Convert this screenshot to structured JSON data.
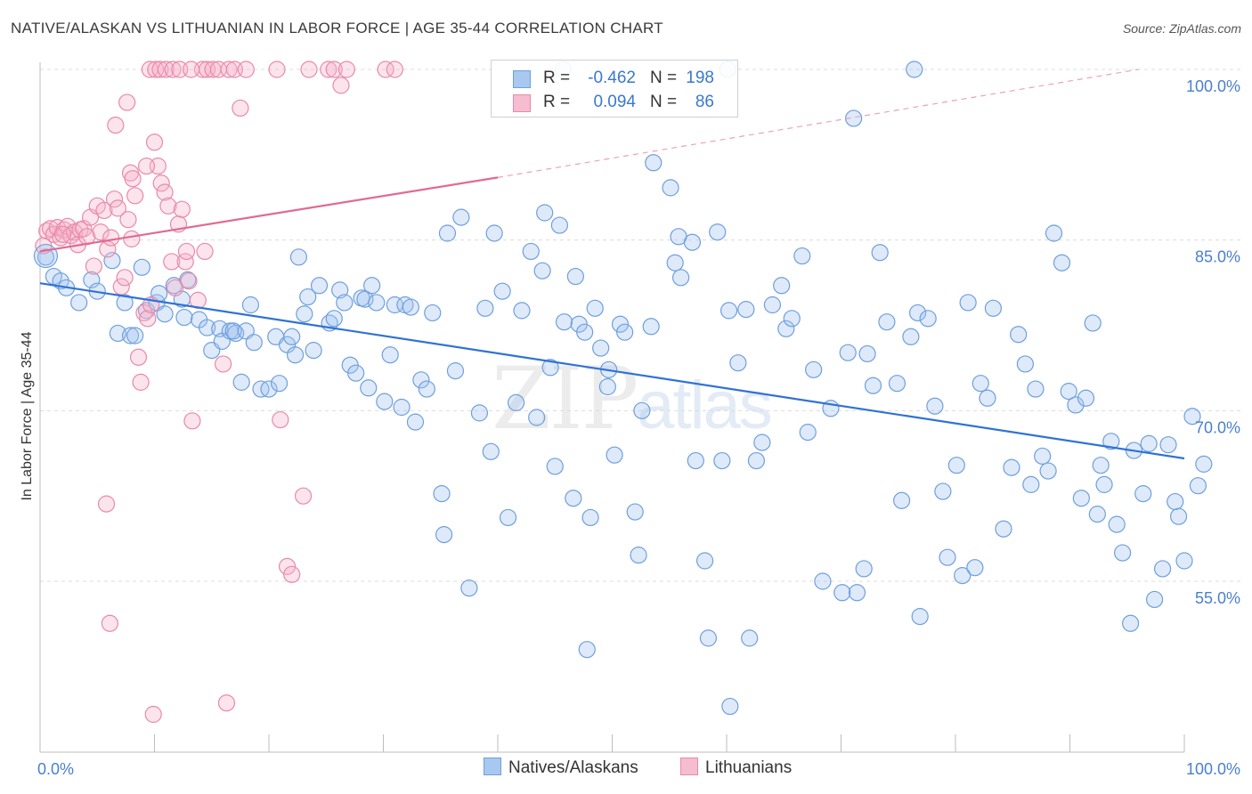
{
  "title": "NATIVE/ALASKAN VS LITHUANIAN IN LABOR FORCE | AGE 35-44 CORRELATION CHART",
  "source": "Source: ZipAtlas.com",
  "watermark": {
    "zip": "ZIP",
    "atlas": "atlas"
  },
  "legend": {
    "rows": [
      {
        "r_label": "R =",
        "r_value": "-0.462",
        "n_label": "N =",
        "n_value": "198",
        "color": "#a8c8f0",
        "border": "#6f9fdc"
      },
      {
        "r_label": "R =",
        "r_value": "0.094",
        "n_label": "N =",
        "n_value": "86",
        "color": "#f6bcd0",
        "border": "#e88aa8"
      }
    ]
  },
  "bottom_legend": [
    {
      "label": "Natives/Alaskans",
      "color": "#a8c8f0",
      "border": "#6f9fdc"
    },
    {
      "label": "Lithuanians",
      "color": "#f6bcd0",
      "border": "#e88aa8"
    }
  ],
  "chart_data": {
    "type": "scatter",
    "xlabel": "",
    "ylabel": "In Labor Force | Age 35-44",
    "xlim": [
      0,
      100
    ],
    "ylim": [
      40,
      102
    ],
    "y_ticks": [
      {
        "value": 100,
        "label": "100.0%"
      },
      {
        "value": 85,
        "label": "85.0%"
      },
      {
        "value": 70,
        "label": "70.0%"
      },
      {
        "value": 55,
        "label": "55.0%"
      }
    ],
    "x_tick_labels": [
      {
        "value": 0,
        "label": "0.0%"
      },
      {
        "value": 100,
        "label": "100.0%"
      }
    ],
    "x_minor_ticks": [
      10,
      20,
      30,
      40,
      50,
      60,
      70,
      80,
      90,
      100
    ],
    "grid": true,
    "legend_position": "top-center",
    "series": [
      {
        "name": "Natives/Alaskans",
        "color": "#6f9fdc",
        "trend": {
          "x0": 0,
          "y0": 81.2,
          "x1": 100,
          "y1": 65.8,
          "style": "solid"
        },
        "points": [
          [
            0.5,
            83.5
          ],
          [
            1.2,
            81.8
          ],
          [
            1.8,
            81.4
          ],
          [
            2.3,
            80.8
          ],
          [
            3.4,
            79.5
          ],
          [
            4.5,
            81.5
          ],
          [
            5.0,
            80.5
          ],
          [
            6.3,
            83.2
          ],
          [
            6.8,
            76.8
          ],
          [
            7.4,
            79.5
          ],
          [
            7.9,
            76.6
          ],
          [
            8.3,
            76.6
          ],
          [
            8.9,
            82.6
          ],
          [
            9.3,
            78.8
          ],
          [
            10.2,
            79.5
          ],
          [
            10.4,
            80.3
          ],
          [
            10.9,
            78.5
          ],
          [
            11.7,
            81.0
          ],
          [
            12.4,
            79.8
          ],
          [
            12.6,
            78.2
          ],
          [
            12.9,
            81.5
          ],
          [
            13.9,
            78.0
          ],
          [
            14.6,
            77.3
          ],
          [
            15.0,
            75.3
          ],
          [
            15.7,
            77.2
          ],
          [
            15.9,
            76.1
          ],
          [
            16.6,
            77.0
          ],
          [
            17.1,
            76.8
          ],
          [
            16.9,
            77.0
          ],
          [
            17.6,
            72.5
          ],
          [
            18.0,
            77.0
          ],
          [
            18.4,
            79.3
          ],
          [
            18.7,
            76.0
          ],
          [
            19.3,
            71.9
          ],
          [
            20.0,
            71.9
          ],
          [
            20.6,
            76.5
          ],
          [
            20.9,
            72.4
          ],
          [
            21.6,
            75.8
          ],
          [
            22.0,
            76.5
          ],
          [
            22.3,
            74.9
          ],
          [
            22.6,
            83.5
          ],
          [
            23.1,
            78.5
          ],
          [
            23.4,
            80.0
          ],
          [
            23.9,
            75.3
          ],
          [
            24.4,
            81.0
          ],
          [
            25.3,
            77.7
          ],
          [
            25.7,
            78.1
          ],
          [
            26.2,
            80.6
          ],
          [
            26.6,
            79.5
          ],
          [
            27.1,
            74.0
          ],
          [
            27.6,
            73.3
          ],
          [
            28.1,
            79.9
          ],
          [
            28.4,
            79.8
          ],
          [
            28.7,
            72.0
          ],
          [
            29.0,
            81.0
          ],
          [
            29.4,
            79.5
          ],
          [
            30.1,
            70.8
          ],
          [
            30.6,
            74.9
          ],
          [
            31.0,
            79.3
          ],
          [
            31.6,
            70.3
          ],
          [
            31.9,
            79.3
          ],
          [
            32.4,
            79.1
          ],
          [
            32.8,
            69.0
          ],
          [
            33.3,
            72.7
          ],
          [
            33.8,
            71.9
          ],
          [
            34.3,
            78.6
          ],
          [
            35.1,
            62.7
          ],
          [
            35.3,
            59.1
          ],
          [
            35.6,
            85.6
          ],
          [
            36.3,
            73.5
          ],
          [
            36.8,
            87.0
          ],
          [
            37.5,
            54.4
          ],
          [
            38.4,
            69.8
          ],
          [
            38.9,
            79.0
          ],
          [
            39.4,
            66.4
          ],
          [
            39.7,
            85.6
          ],
          [
            40.4,
            80.5
          ],
          [
            40.9,
            60.6
          ],
          [
            41.6,
            70.7
          ],
          [
            42.1,
            78.8
          ],
          [
            42.9,
            84.0
          ],
          [
            43.4,
            69.4
          ],
          [
            43.9,
            82.3
          ],
          [
            44.1,
            87.4
          ],
          [
            44.6,
            73.8
          ],
          [
            45.0,
            65.1
          ],
          [
            45.4,
            86.3
          ],
          [
            45.8,
            77.8
          ],
          [
            46.6,
            62.3
          ],
          [
            46.8,
            81.8
          ],
          [
            47.1,
            77.6
          ],
          [
            47.6,
            76.9
          ],
          [
            48.1,
            60.6
          ],
          [
            48.5,
            79.0
          ],
          [
            49.0,
            75.5
          ],
          [
            49.6,
            72.1
          ],
          [
            49.7,
            73.6
          ],
          [
            50.2,
            66.1
          ],
          [
            50.7,
            77.6
          ],
          [
            51.1,
            76.9
          ],
          [
            52.0,
            61.1
          ],
          [
            52.3,
            57.3
          ],
          [
            52.6,
            70.0
          ],
          [
            53.4,
            77.4
          ],
          [
            53.6,
            91.8
          ],
          [
            55.1,
            89.6
          ],
          [
            55.5,
            83.0
          ],
          [
            55.8,
            85.3
          ],
          [
            56.0,
            81.7
          ],
          [
            57.0,
            84.8
          ],
          [
            57.3,
            65.6
          ],
          [
            58.1,
            56.8
          ],
          [
            58.4,
            50.0
          ],
          [
            59.2,
            85.7
          ],
          [
            59.6,
            65.6
          ],
          [
            60.2,
            78.8
          ],
          [
            61.0,
            74.2
          ],
          [
            61.7,
            78.9
          ],
          [
            62.0,
            50.0
          ],
          [
            62.6,
            65.6
          ],
          [
            63.1,
            67.2
          ],
          [
            64.0,
            79.3
          ],
          [
            64.8,
            81.0
          ],
          [
            65.2,
            77.2
          ],
          [
            65.7,
            78.1
          ],
          [
            66.6,
            83.6
          ],
          [
            67.1,
            68.1
          ],
          [
            67.6,
            73.6
          ],
          [
            68.4,
            55.0
          ],
          [
            69.1,
            70.2
          ],
          [
            70.1,
            54.0
          ],
          [
            70.6,
            75.1
          ],
          [
            71.1,
            95.7
          ],
          [
            71.4,
            54.0
          ],
          [
            72.0,
            56.1
          ],
          [
            72.3,
            75.0
          ],
          [
            72.8,
            72.2
          ],
          [
            73.4,
            83.9
          ],
          [
            74.0,
            77.8
          ],
          [
            74.9,
            72.4
          ],
          [
            75.3,
            62.1
          ],
          [
            76.1,
            76.5
          ],
          [
            76.7,
            78.6
          ],
          [
            76.9,
            51.9
          ],
          [
            77.6,
            78.1
          ],
          [
            78.2,
            70.4
          ],
          [
            78.9,
            62.9
          ],
          [
            79.3,
            57.1
          ],
          [
            80.1,
            65.2
          ],
          [
            80.6,
            55.5
          ],
          [
            81.1,
            79.5
          ],
          [
            81.7,
            56.2
          ],
          [
            82.2,
            72.4
          ],
          [
            82.8,
            71.1
          ],
          [
            83.3,
            79.0
          ],
          [
            84.2,
            59.6
          ],
          [
            84.9,
            65.0
          ],
          [
            85.5,
            76.7
          ],
          [
            86.1,
            74.1
          ],
          [
            86.6,
            63.5
          ],
          [
            87.0,
            71.9
          ],
          [
            87.6,
            66.0
          ],
          [
            88.1,
            64.7
          ],
          [
            88.6,
            85.6
          ],
          [
            89.3,
            83.0
          ],
          [
            89.9,
            71.7
          ],
          [
            90.5,
            70.5
          ],
          [
            91.0,
            62.3
          ],
          [
            91.4,
            71.1
          ],
          [
            92.0,
            77.7
          ],
          [
            92.4,
            60.9
          ],
          [
            92.7,
            65.2
          ],
          [
            93.0,
            63.5
          ],
          [
            93.6,
            67.3
          ],
          [
            94.1,
            60.0
          ],
          [
            94.6,
            57.5
          ],
          [
            95.3,
            51.3
          ],
          [
            95.6,
            66.5
          ],
          [
            96.4,
            62.7
          ],
          [
            96.9,
            67.1
          ],
          [
            97.4,
            53.4
          ],
          [
            98.1,
            56.1
          ],
          [
            98.6,
            67.0
          ],
          [
            99.2,
            62.0
          ],
          [
            99.5,
            60.7
          ],
          [
            100.0,
            56.8
          ],
          [
            100.7,
            69.5
          ],
          [
            101.2,
            63.4
          ],
          [
            101.7,
            65.3
          ],
          [
            60.1,
            100.0
          ],
          [
            45.7,
            100.0
          ],
          [
            76.4,
            100.0
          ],
          [
            47.8,
            49.0
          ],
          [
            60.3,
            44.0
          ]
        ]
      },
      {
        "name": "Lithuanians",
        "color": "#e88aa8",
        "trend": {
          "x0": 0,
          "y0": 84.0,
          "x1": 40.0,
          "y1": 90.5,
          "x2": 96.0,
          "y2": 100.0,
          "style": "solid-then-dashed"
        },
        "points": [
          [
            0.3,
            84.5
          ],
          [
            0.6,
            85.8
          ],
          [
            0.9,
            86.0
          ],
          [
            1.2,
            85.5
          ],
          [
            1.5,
            86.1
          ],
          [
            1.8,
            85.2
          ],
          [
            2.1,
            85.9
          ],
          [
            2.4,
            86.2
          ],
          [
            2.7,
            85.4
          ],
          [
            3.0,
            85.7
          ],
          [
            3.3,
            84.6
          ],
          [
            3.5,
            85.9
          ],
          [
            3.8,
            86.0
          ],
          [
            4.1,
            85.3
          ],
          [
            4.4,
            87.0
          ],
          [
            4.7,
            82.7
          ],
          [
            5.0,
            88.0
          ],
          [
            5.3,
            85.7
          ],
          [
            5.6,
            87.6
          ],
          [
            5.9,
            84.2
          ],
          [
            6.2,
            85.2
          ],
          [
            6.5,
            88.6
          ],
          [
            6.8,
            87.8
          ],
          [
            7.1,
            80.9
          ],
          [
            7.4,
            81.7
          ],
          [
            7.7,
            86.8
          ],
          [
            8.0,
            85.1
          ],
          [
            8.3,
            88.9
          ],
          [
            8.6,
            74.7
          ],
          [
            8.8,
            72.5
          ],
          [
            9.1,
            78.6
          ],
          [
            9.4,
            78.1
          ],
          [
            9.7,
            79.3
          ],
          [
            10.0,
            93.6
          ],
          [
            10.3,
            91.5
          ],
          [
            10.6,
            90.0
          ],
          [
            10.9,
            89.2
          ],
          [
            11.2,
            88.0
          ],
          [
            11.5,
            83.1
          ],
          [
            11.8,
            80.8
          ],
          [
            12.1,
            86.4
          ],
          [
            12.4,
            87.7
          ],
          [
            12.7,
            83.1
          ],
          [
            13.0,
            81.4
          ],
          [
            13.3,
            69.1
          ],
          [
            13.8,
            79.7
          ],
          [
            14.2,
            100.0
          ],
          [
            14.6,
            100.0
          ],
          [
            15.1,
            100.0
          ],
          [
            15.6,
            100.0
          ],
          [
            16.0,
            74.1
          ],
          [
            16.5,
            100.0
          ],
          [
            17.0,
            100.0
          ],
          [
            17.5,
            96.6
          ],
          [
            18.0,
            100.0
          ],
          [
            9.6,
            100.0
          ],
          [
            10.1,
            100.0
          ],
          [
            10.5,
            100.0
          ],
          [
            11.0,
            100.0
          ],
          [
            11.6,
            100.0
          ],
          [
            12.2,
            100.0
          ],
          [
            13.2,
            100.0
          ],
          [
            20.7,
            100.0
          ],
          [
            21.0,
            69.2
          ],
          [
            21.6,
            56.3
          ],
          [
            22.0,
            55.6
          ],
          [
            23.0,
            62.5
          ],
          [
            23.5,
            100.0
          ],
          [
            25.2,
            100.0
          ],
          [
            25.7,
            100.0
          ],
          [
            26.3,
            98.6
          ],
          [
            26.8,
            100.0
          ],
          [
            30.2,
            100.0
          ],
          [
            31.0,
            100.0
          ],
          [
            5.8,
            61.8
          ],
          [
            6.1,
            51.3
          ],
          [
            6.6,
            95.1
          ],
          [
            7.6,
            97.1
          ],
          [
            7.9,
            90.9
          ],
          [
            8.1,
            90.4
          ],
          [
            9.3,
            91.5
          ],
          [
            12.8,
            84.0
          ],
          [
            14.4,
            84.0
          ],
          [
            16.3,
            44.3
          ],
          [
            9.9,
            43.3
          ],
          [
            2.0,
            85.5
          ]
        ]
      }
    ]
  }
}
